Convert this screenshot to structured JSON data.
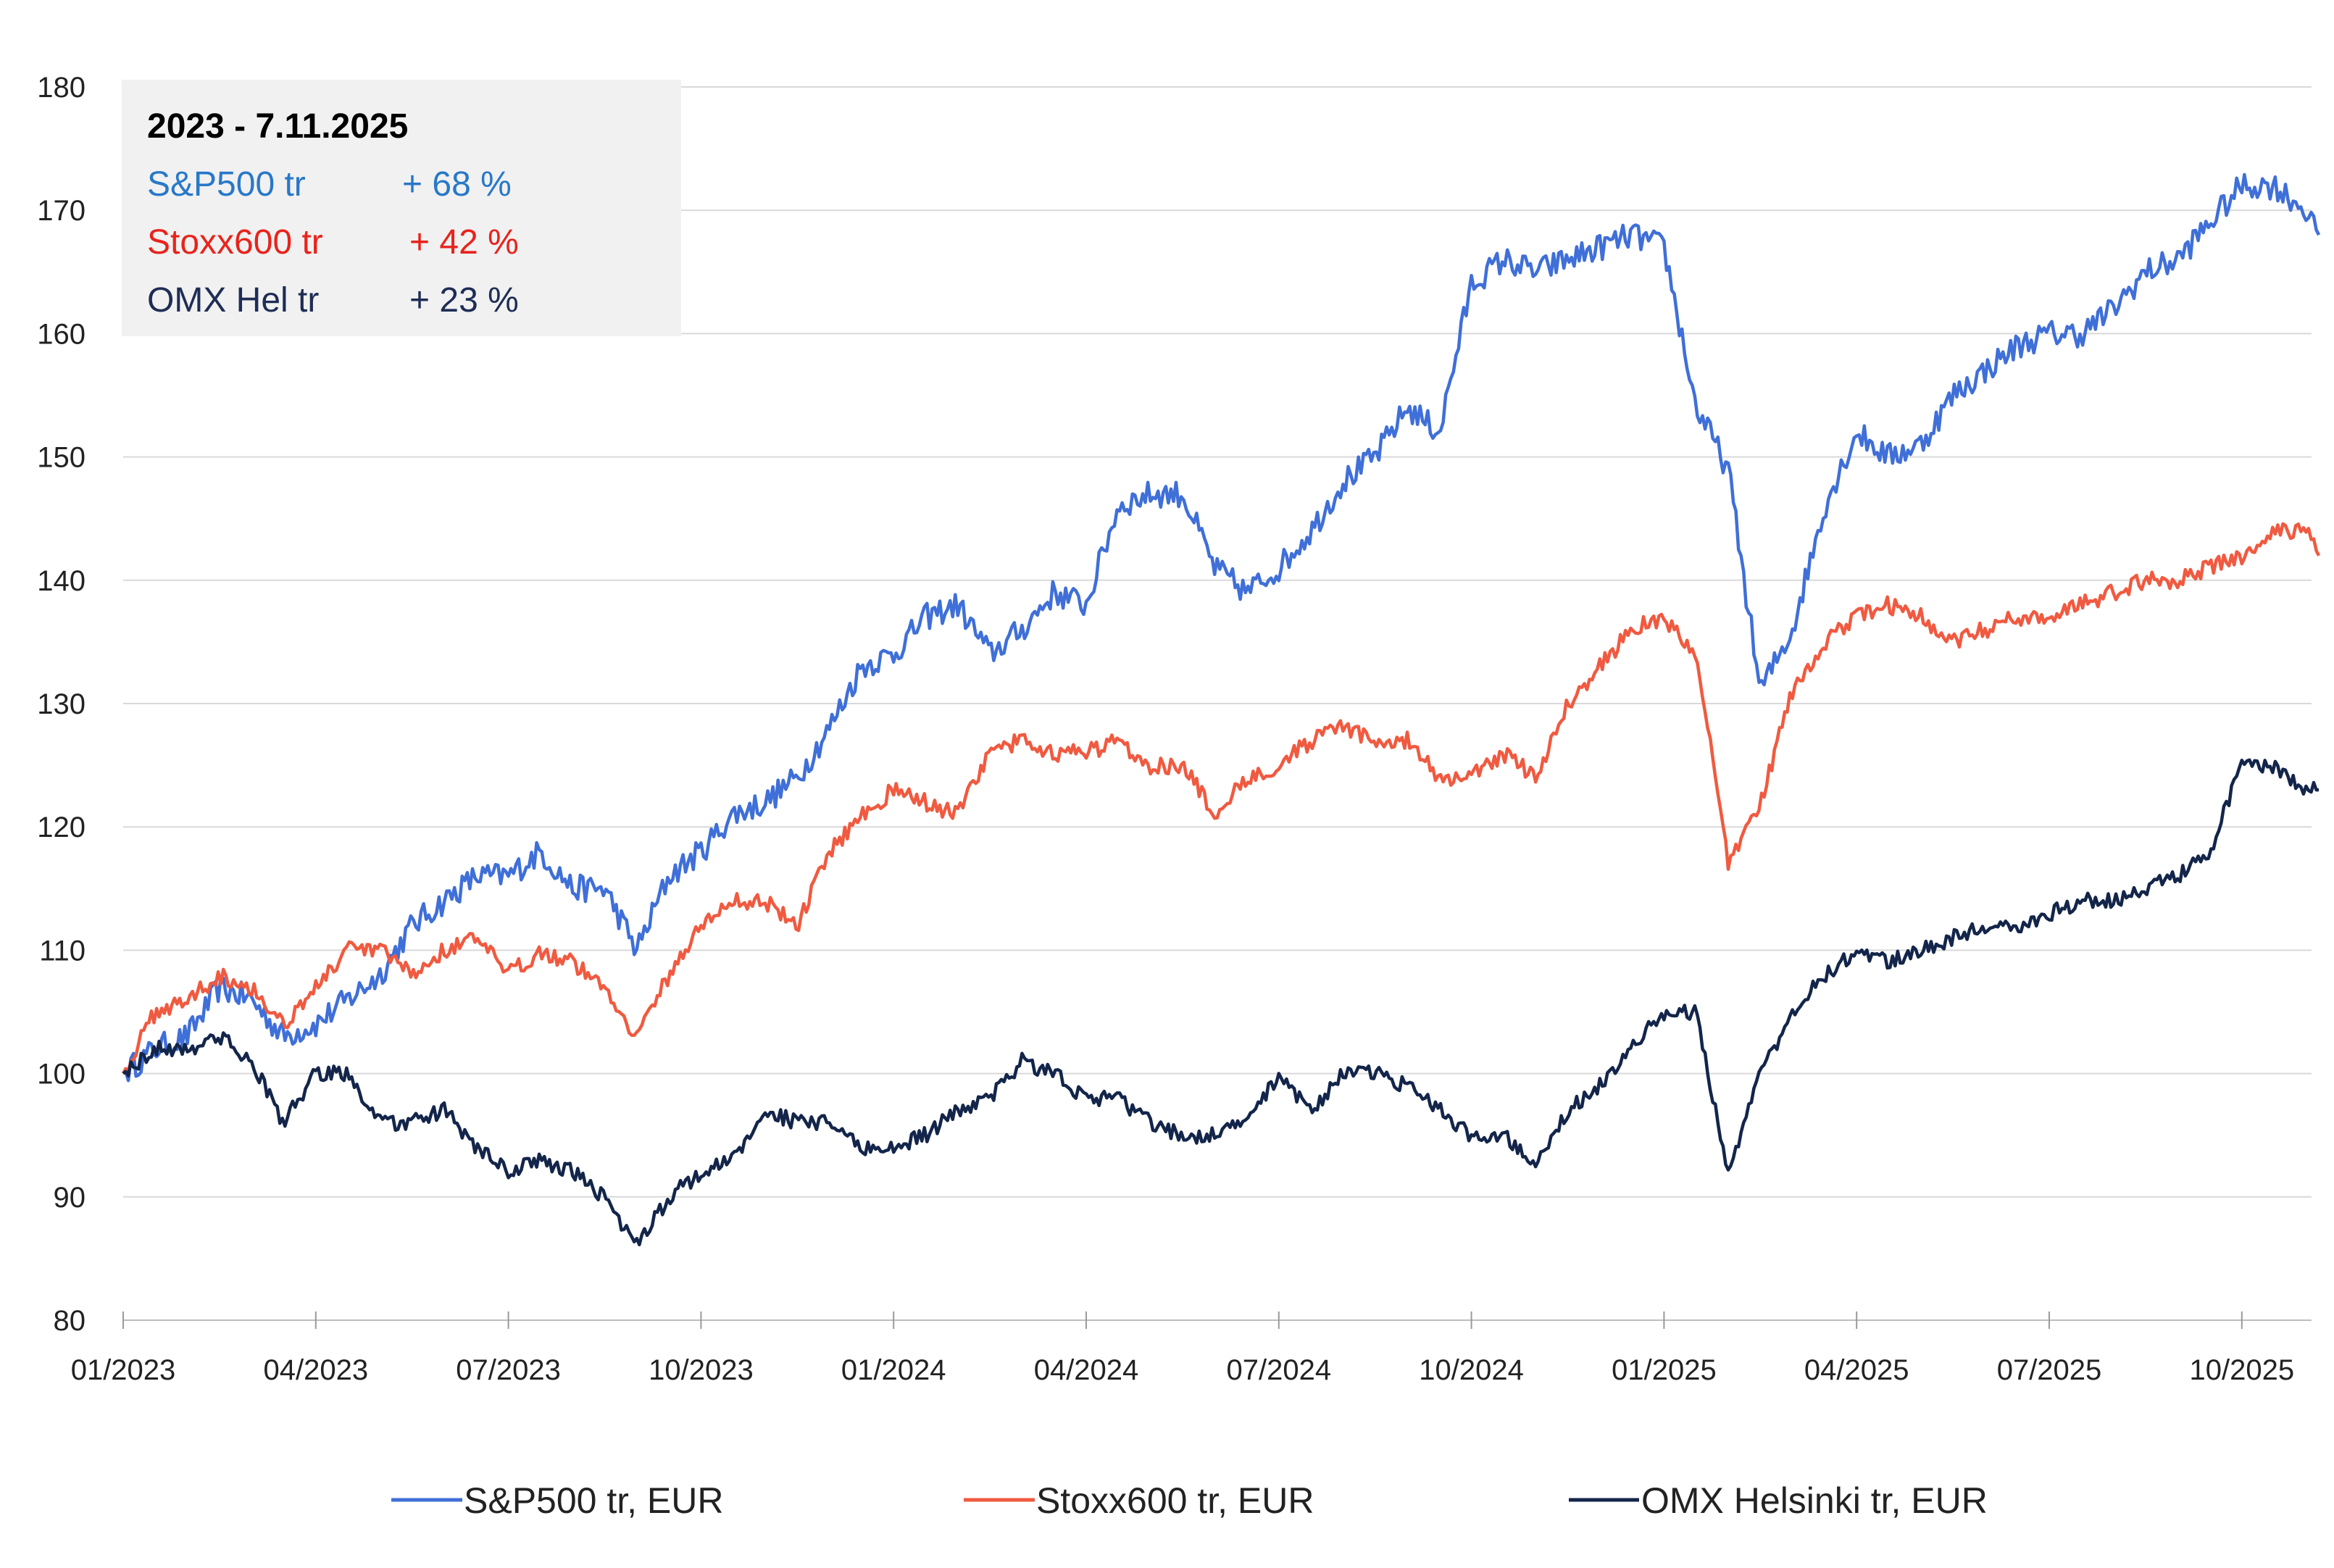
{
  "chart_data": {
    "type": "line",
    "title": "",
    "xlabel": "",
    "ylabel": "",
    "ylim": [
      80,
      180
    ],
    "yticks": [
      80,
      90,
      100,
      110,
      120,
      130,
      140,
      150,
      160,
      170,
      180
    ],
    "xticks": [
      "01/2023",
      "04/2023",
      "07/2023",
      "10/2023",
      "01/2024",
      "04/2024",
      "07/2024",
      "10/2024",
      "01/2025",
      "04/2025",
      "07/2025",
      "10/2025"
    ],
    "xrange_months": [
      0,
      34.2
    ],
    "grid": "horizontal",
    "legend_position": "bottom",
    "annotation": {
      "title": "2023 - 7.11.2025",
      "rows": [
        {
          "label": "S&P500 tr",
          "value": "+ 68 %",
          "color": "#2878c8"
        },
        {
          "label": "Stoxx600 tr",
          "value": "+ 42 %",
          "color": "#e8231c"
        },
        {
          "label": "OMX Hel tr",
          "value": "+ 23 %",
          "color": "#1e2d55"
        }
      ]
    },
    "series": [
      {
        "name": "S&P500 tr, EUR",
        "color": "#3f6fd8",
        "x": [
          0,
          0.5,
          1.0,
          1.5,
          2.0,
          2.5,
          3.0,
          3.5,
          4.0,
          4.5,
          5.0,
          5.5,
          6.0,
          6.5,
          7.0,
          7.5,
          8.0,
          8.5,
          9.0,
          9.5,
          10.0,
          10.5,
          11.0,
          11.5,
          12.0,
          12.5,
          13.0,
          13.5,
          14.0,
          14.5,
          15.0,
          15.5,
          16.0,
          16.5,
          17.0,
          17.5,
          18.0,
          18.5,
          19.0,
          19.5,
          20.0,
          20.5,
          21.0,
          21.5,
          22.0,
          22.5,
          23.0,
          23.5,
          24.0,
          24.5,
          25.0,
          25.5,
          26.0,
          26.5,
          27.0,
          27.5,
          28.0,
          28.5,
          29.0,
          29.5,
          30.0,
          30.5,
          31.0,
          31.5,
          32.0,
          32.5,
          33.0,
          33.5,
          34.0,
          34.2
        ],
        "values": [
          100,
          102,
          103,
          107,
          106,
          103,
          104,
          106,
          108,
          112,
          114,
          116,
          116,
          118,
          115,
          115,
          110,
          116,
          118,
          121,
          122,
          124,
          128,
          133,
          134,
          137,
          138,
          134,
          136,
          139,
          138,
          146,
          147,
          147,
          141,
          139,
          141,
          144,
          148,
          150,
          154,
          152,
          164,
          166,
          165,
          166,
          167,
          168,
          167,
          154,
          149,
          131,
          136,
          146,
          152,
          150,
          151,
          155,
          157,
          159,
          160,
          160,
          162,
          165,
          166,
          169,
          172,
          172,
          170,
          168
        ],
        "end_label": "+ 68 %"
      },
      {
        "name": "Stoxx600 tr, EUR",
        "color": "#f05a40",
        "x": [
          0,
          0.5,
          1.0,
          1.5,
          2.0,
          2.5,
          3.0,
          3.5,
          4.0,
          4.5,
          5.0,
          5.5,
          6.0,
          6.5,
          7.0,
          7.5,
          8.0,
          8.5,
          9.0,
          9.5,
          10.0,
          10.5,
          11.0,
          11.5,
          12.0,
          12.5,
          13.0,
          13.5,
          14.0,
          14.5,
          15.0,
          15.5,
          16.0,
          16.5,
          17.0,
          17.5,
          18.0,
          18.5,
          19.0,
          19.5,
          20.0,
          20.5,
          21.0,
          21.5,
          22.0,
          22.5,
          23.0,
          23.5,
          24.0,
          24.5,
          25.0,
          25.5,
          26.0,
          26.5,
          27.0,
          27.5,
          28.0,
          28.5,
          29.0,
          29.5,
          30.0,
          30.5,
          31.0,
          31.5,
          32.0,
          32.5,
          33.0,
          33.5,
          34.0,
          34.2
        ],
        "values": [
          100,
          105,
          106,
          108,
          107,
          104,
          107,
          110,
          110,
          108,
          110,
          111,
          108,
          110,
          109,
          107,
          103,
          108,
          112,
          114,
          114,
          112,
          118,
          121,
          123,
          122,
          121,
          126,
          127,
          126,
          126,
          127,
          125,
          125,
          121,
          124,
          125,
          127,
          128,
          127,
          127,
          124,
          124,
          126,
          124,
          130,
          133,
          136,
          137,
          134,
          117,
          122,
          131,
          135,
          137,
          138,
          137,
          135,
          136,
          137,
          137,
          138,
          139,
          140,
          140,
          141,
          142,
          144,
          144,
          142
        ],
        "end_label": "+ 42 %"
      },
      {
        "name": "OMX Helsinki tr, EUR",
        "color": "#13254a",
        "x": [
          0,
          0.5,
          1.0,
          1.5,
          2.0,
          2.5,
          3.0,
          3.5,
          4.0,
          4.5,
          5.0,
          5.5,
          6.0,
          6.5,
          7.0,
          7.5,
          8.0,
          8.5,
          9.0,
          9.5,
          10.0,
          10.5,
          11.0,
          11.5,
          12.0,
          12.5,
          13.0,
          13.5,
          14.0,
          14.5,
          15.0,
          15.5,
          16.0,
          16.5,
          17.0,
          17.5,
          18.0,
          18.5,
          19.0,
          19.5,
          20.0,
          20.5,
          21.0,
          21.5,
          22.0,
          22.5,
          23.0,
          23.5,
          24.0,
          24.5,
          25.0,
          25.5,
          26.0,
          26.5,
          27.0,
          27.5,
          28.0,
          28.5,
          29.0,
          29.5,
          30.0,
          30.5,
          31.0,
          31.5,
          32.0,
          32.5,
          33.0,
          33.5,
          34.0,
          34.2
        ],
        "values": [
          100,
          102,
          102,
          103,
          101,
          96,
          100,
          100,
          96,
          96,
          97,
          94,
          92,
          93,
          92,
          90,
          86,
          90,
          92,
          93,
          97,
          96,
          96,
          94,
          94,
          95,
          97,
          98,
          101,
          100,
          98,
          98,
          96,
          95,
          95,
          96,
          100,
          97,
          100,
          100,
          99,
          97,
          95,
          95,
          93,
          97,
          99,
          102,
          105,
          105,
          92,
          100,
          105,
          108,
          110,
          109,
          110,
          111,
          112,
          112,
          113,
          114,
          114,
          115,
          116,
          118,
          125,
          125,
          123,
          123
        ],
        "end_label": "+ 23 %"
      }
    ]
  }
}
